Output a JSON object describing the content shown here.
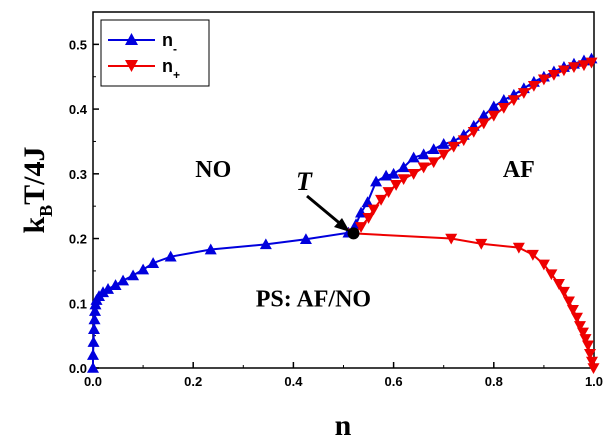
{
  "chart_data": {
    "type": "line",
    "xlabel": "n",
    "ylabel_main": "k",
    "ylabel_sub": "B",
    "ylabel_rest": "T/4J",
    "xlim": [
      0,
      1
    ],
    "ylim": [
      0,
      0.55
    ],
    "x_ticks": [
      0.0,
      0.2,
      0.4,
      0.6,
      0.8,
      1.0
    ],
    "x_tick_labels": [
      "0.0",
      "0.2",
      "0.4",
      "0.6",
      "0.8",
      "1.0"
    ],
    "y_ticks": [
      0.0,
      0.1,
      0.2,
      0.3,
      0.4,
      0.5
    ],
    "y_tick_labels": [
      "0.0",
      "0.1",
      "0.2",
      "0.3",
      "0.4",
      "0.5"
    ],
    "legend": {
      "placement": "top-left",
      "entries": [
        {
          "main": "n",
          "sub": "-",
          "color": "#0000dd",
          "marker": "triangle-up"
        },
        {
          "main": "n",
          "sub": "+",
          "color": "#ee0000",
          "marker": "triangle-down"
        }
      ]
    },
    "series": [
      {
        "name": "n-",
        "color": "#0000dd",
        "marker": "triangle-up",
        "points": [
          [
            0.0,
            0.0
          ],
          [
            0.0,
            0.02
          ],
          [
            0.001,
            0.04
          ],
          [
            0.002,
            0.06
          ],
          [
            0.003,
            0.075
          ],
          [
            0.004,
            0.088
          ],
          [
            0.005,
            0.098
          ],
          [
            0.007,
            0.105
          ],
          [
            0.012,
            0.111
          ],
          [
            0.02,
            0.117
          ],
          [
            0.03,
            0.122
          ],
          [
            0.045,
            0.128
          ],
          [
            0.06,
            0.135
          ],
          [
            0.08,
            0.143
          ],
          [
            0.1,
            0.152
          ],
          [
            0.12,
            0.162
          ],
          [
            0.155,
            0.172
          ],
          [
            0.235,
            0.183
          ],
          [
            0.345,
            0.191
          ],
          [
            0.425,
            0.199
          ],
          [
            0.51,
            0.209
          ],
          [
            0.525,
            0.222
          ],
          [
            0.535,
            0.24
          ],
          [
            0.548,
            0.256
          ],
          [
            0.565,
            0.288
          ],
          [
            0.585,
            0.297
          ],
          [
            0.6,
            0.3
          ],
          [
            0.62,
            0.31
          ],
          [
            0.64,
            0.325
          ],
          [
            0.66,
            0.33
          ],
          [
            0.68,
            0.338
          ],
          [
            0.7,
            0.346
          ],
          [
            0.72,
            0.35
          ],
          [
            0.74,
            0.36
          ],
          [
            0.76,
            0.374
          ],
          [
            0.78,
            0.39
          ],
          [
            0.8,
            0.404
          ],
          [
            0.82,
            0.414
          ],
          [
            0.84,
            0.422
          ],
          [
            0.86,
            0.432
          ],
          [
            0.88,
            0.442
          ],
          [
            0.9,
            0.45
          ],
          [
            0.92,
            0.458
          ],
          [
            0.94,
            0.465
          ],
          [
            0.96,
            0.47
          ],
          [
            0.98,
            0.475
          ],
          [
            0.995,
            0.478
          ]
        ]
      },
      {
        "name": "n+",
        "color": "#ee0000",
        "marker": "triangle-down",
        "points": [
          [
            0.52,
            0.208
          ],
          [
            0.535,
            0.218
          ],
          [
            0.55,
            0.232
          ],
          [
            0.56,
            0.245
          ],
          [
            0.575,
            0.26
          ],
          [
            0.59,
            0.272
          ],
          [
            0.605,
            0.283
          ],
          [
            0.62,
            0.292
          ],
          [
            0.64,
            0.3
          ],
          [
            0.66,
            0.31
          ],
          [
            0.68,
            0.318
          ],
          [
            0.7,
            0.33
          ],
          [
            0.72,
            0.342
          ],
          [
            0.74,
            0.352
          ],
          [
            0.76,
            0.365
          ],
          [
            0.78,
            0.378
          ],
          [
            0.8,
            0.39
          ],
          [
            0.82,
            0.402
          ],
          [
            0.84,
            0.414
          ],
          [
            0.86,
            0.425
          ],
          [
            0.88,
            0.436
          ],
          [
            0.9,
            0.446
          ],
          [
            0.92,
            0.453
          ],
          [
            0.94,
            0.46
          ],
          [
            0.96,
            0.465
          ],
          [
            0.98,
            0.468
          ],
          [
            0.995,
            0.472
          ]
        ]
      },
      {
        "name": "n+ (lower)",
        "color": "#ee0000",
        "marker": "triangle-down",
        "points": [
          [
            0.52,
            0.208
          ],
          [
            0.715,
            0.2
          ],
          [
            0.775,
            0.192
          ],
          [
            0.85,
            0.186
          ],
          [
            0.878,
            0.175
          ],
          [
            0.9,
            0.16
          ],
          [
            0.915,
            0.145
          ],
          [
            0.93,
            0.13
          ],
          [
            0.94,
            0.118
          ],
          [
            0.95,
            0.103
          ],
          [
            0.958,
            0.09
          ],
          [
            0.966,
            0.078
          ],
          [
            0.972,
            0.065
          ],
          [
            0.978,
            0.055
          ],
          [
            0.983,
            0.045
          ],
          [
            0.988,
            0.035
          ],
          [
            0.992,
            0.022
          ],
          [
            0.996,
            0.01
          ],
          [
            0.999,
            0.0
          ]
        ]
      }
    ],
    "tricritical_point": {
      "x": 0.52,
      "y": 0.208,
      "label": "T"
    },
    "annotations": [
      {
        "text": "NO",
        "x": 0.24,
        "y": 0.295
      },
      {
        "text": "AF",
        "x": 0.85,
        "y": 0.295
      },
      {
        "text": "PS: AF/NO",
        "x": 0.44,
        "y": 0.095
      }
    ]
  }
}
